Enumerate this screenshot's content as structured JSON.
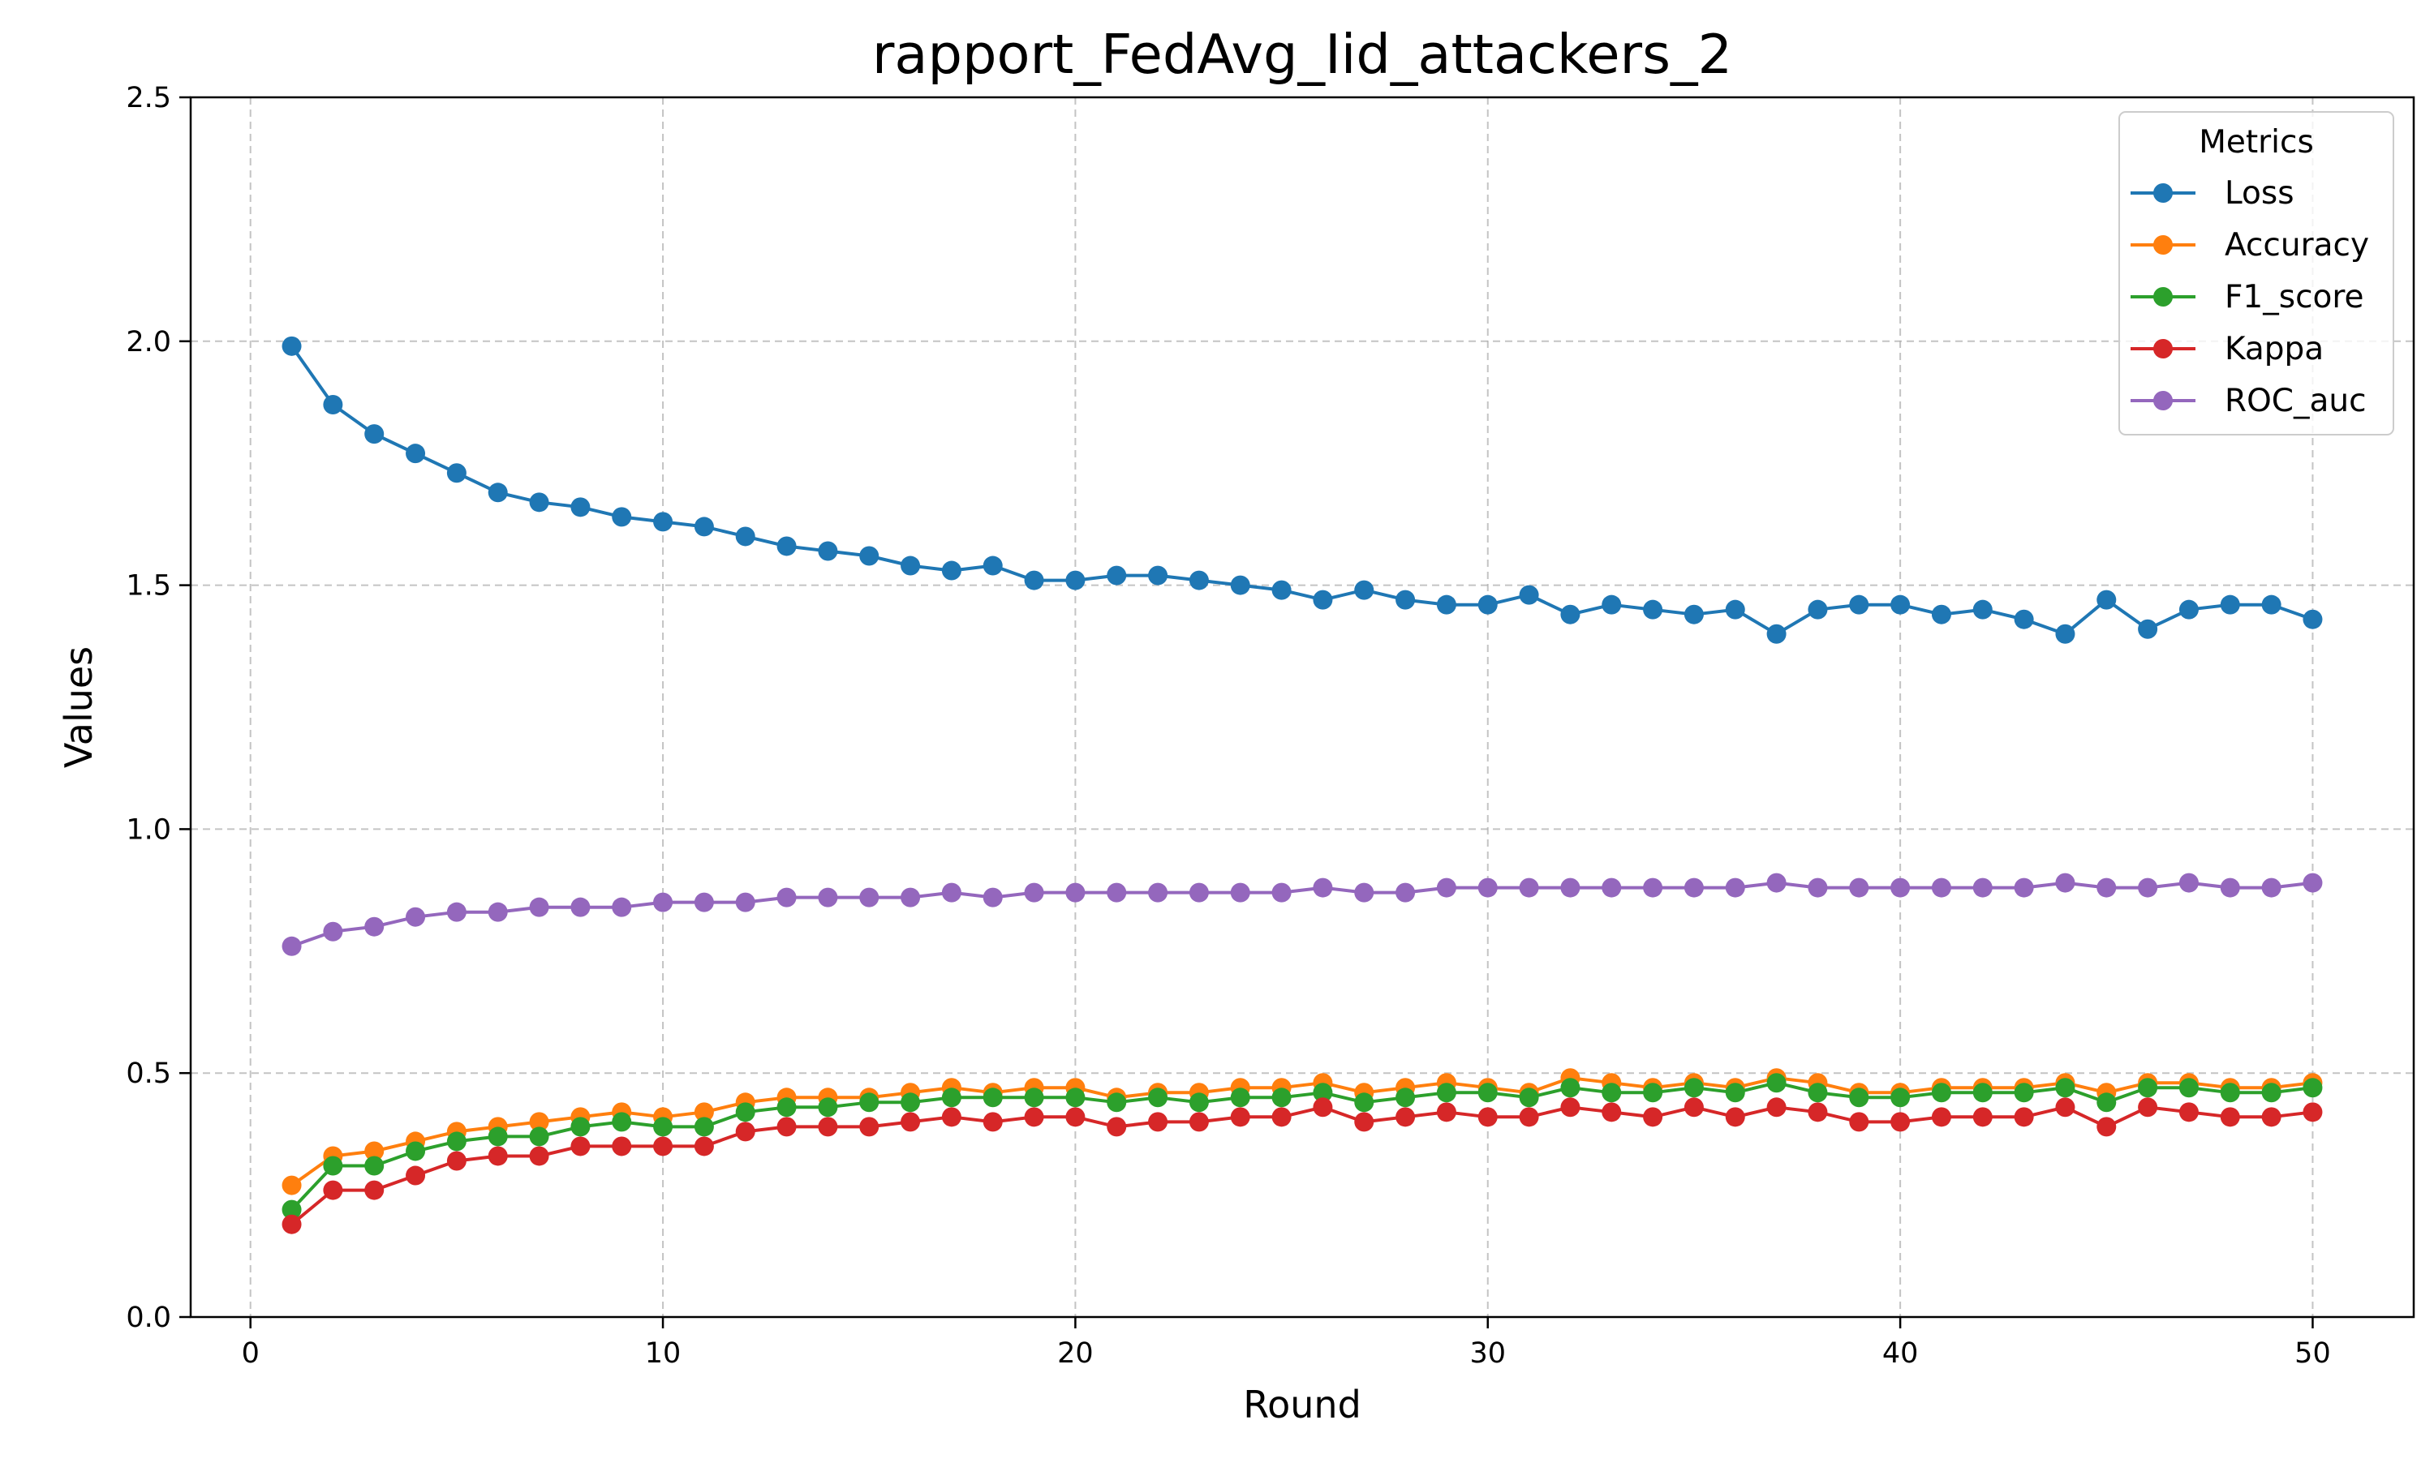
{
  "chart_data": {
    "type": "line",
    "title": "rapport_FedAvg_Iid_attackers_2",
    "xlabel": "Round",
    "ylabel": "Values",
    "xlim": [
      -1.45,
      52.45
    ],
    "ylim": [
      0,
      2.5
    ],
    "xticks": [
      0,
      10,
      20,
      30,
      40,
      50
    ],
    "yticks": [
      0.0,
      0.5,
      1.0,
      1.5,
      2.0,
      2.5
    ],
    "xtick_labels": [
      "0",
      "10",
      "20",
      "30",
      "40",
      "50"
    ],
    "ytick_labels": [
      "0.0",
      "0.5",
      "1.0",
      "1.5",
      "2.0",
      "2.5"
    ],
    "grid": true,
    "legend": {
      "title": "Metrics",
      "placement": "top-right"
    },
    "marker": "circle",
    "x": [
      1,
      2,
      3,
      4,
      5,
      6,
      7,
      8,
      9,
      10,
      11,
      12,
      13,
      14,
      15,
      16,
      17,
      18,
      19,
      20,
      21,
      22,
      23,
      24,
      25,
      26,
      27,
      28,
      29,
      30,
      31,
      32,
      33,
      34,
      35,
      36,
      37,
      38,
      39,
      40,
      41,
      42,
      43,
      44,
      45,
      46,
      47,
      48,
      49,
      50
    ],
    "series": [
      {
        "name": "Loss",
        "color": "#1f77b4",
        "values": [
          1.99,
          1.87,
          1.81,
          1.77,
          1.73,
          1.69,
          1.67,
          1.66,
          1.64,
          1.63,
          1.62,
          1.6,
          1.58,
          1.57,
          1.56,
          1.54,
          1.53,
          1.54,
          1.51,
          1.51,
          1.52,
          1.52,
          1.51,
          1.5,
          1.49,
          1.47,
          1.49,
          1.47,
          1.46,
          1.46,
          1.48,
          1.44,
          1.46,
          1.45,
          1.44,
          1.45,
          1.4,
          1.45,
          1.46,
          1.46,
          1.44,
          1.45,
          1.43,
          1.4,
          1.47,
          1.41,
          1.45,
          1.46,
          1.46,
          1.43
        ]
      },
      {
        "name": "Accuracy",
        "color": "#ff7f0e",
        "values": [
          0.27,
          0.33,
          0.34,
          0.36,
          0.38,
          0.39,
          0.4,
          0.41,
          0.42,
          0.41,
          0.42,
          0.44,
          0.45,
          0.45,
          0.45,
          0.46,
          0.47,
          0.46,
          0.47,
          0.47,
          0.45,
          0.46,
          0.46,
          0.47,
          0.47,
          0.48,
          0.46,
          0.47,
          0.48,
          0.47,
          0.46,
          0.49,
          0.48,
          0.47,
          0.48,
          0.47,
          0.49,
          0.48,
          0.46,
          0.46,
          0.47,
          0.47,
          0.47,
          0.48,
          0.46,
          0.48,
          0.48,
          0.47,
          0.47,
          0.48
        ]
      },
      {
        "name": "F1_score",
        "color": "#2ca02c",
        "values": [
          0.22,
          0.31,
          0.31,
          0.34,
          0.36,
          0.37,
          0.37,
          0.39,
          0.4,
          0.39,
          0.39,
          0.42,
          0.43,
          0.43,
          0.44,
          0.44,
          0.45,
          0.45,
          0.45,
          0.45,
          0.44,
          0.45,
          0.44,
          0.45,
          0.45,
          0.46,
          0.44,
          0.45,
          0.46,
          0.46,
          0.45,
          0.47,
          0.46,
          0.46,
          0.47,
          0.46,
          0.48,
          0.46,
          0.45,
          0.45,
          0.46,
          0.46,
          0.46,
          0.47,
          0.44,
          0.47,
          0.47,
          0.46,
          0.46,
          0.47
        ]
      },
      {
        "name": "Kappa",
        "color": "#d62728",
        "values": [
          0.19,
          0.26,
          0.26,
          0.29,
          0.32,
          0.33,
          0.33,
          0.35,
          0.35,
          0.35,
          0.35,
          0.38,
          0.39,
          0.39,
          0.39,
          0.4,
          0.41,
          0.4,
          0.41,
          0.41,
          0.39,
          0.4,
          0.4,
          0.41,
          0.41,
          0.43,
          0.4,
          0.41,
          0.42,
          0.41,
          0.41,
          0.43,
          0.42,
          0.41,
          0.43,
          0.41,
          0.43,
          0.42,
          0.4,
          0.4,
          0.41,
          0.41,
          0.41,
          0.43,
          0.39,
          0.43,
          0.42,
          0.41,
          0.41,
          0.42
        ]
      },
      {
        "name": "ROC_auc",
        "color": "#9467bd",
        "values": [
          0.76,
          0.79,
          0.8,
          0.82,
          0.83,
          0.83,
          0.84,
          0.84,
          0.84,
          0.85,
          0.85,
          0.85,
          0.86,
          0.86,
          0.86,
          0.86,
          0.87,
          0.86,
          0.87,
          0.87,
          0.87,
          0.87,
          0.87,
          0.87,
          0.87,
          0.88,
          0.87,
          0.87,
          0.88,
          0.88,
          0.88,
          0.88,
          0.88,
          0.88,
          0.88,
          0.88,
          0.89,
          0.88,
          0.88,
          0.88,
          0.88,
          0.88,
          0.88,
          0.89,
          0.88,
          0.88,
          0.89,
          0.88,
          0.88,
          0.89
        ]
      }
    ]
  }
}
